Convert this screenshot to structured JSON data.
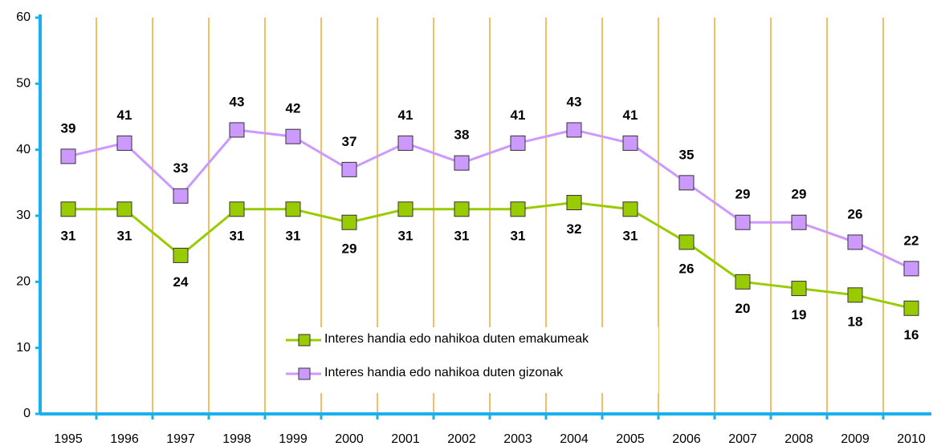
{
  "chart_data": {
    "type": "line",
    "categories": [
      "1995",
      "1996",
      "1997",
      "1998",
      "1999",
      "2000",
      "2001",
      "2002",
      "2003",
      "2004",
      "2005",
      "2006",
      "2007",
      "2008",
      "2009",
      "2010"
    ],
    "series": [
      {
        "name": "Interes handia edo nahikoa duten emakumeak",
        "color": "#99cc00",
        "values": [
          31,
          31,
          24,
          31,
          31,
          29,
          31,
          31,
          31,
          32,
          31,
          26,
          20,
          19,
          18,
          16
        ]
      },
      {
        "name": "Interes handia edo nahikoa duten gizonak",
        "color": "#cc99ff",
        "values": [
          39,
          41,
          33,
          43,
          42,
          37,
          41,
          38,
          41,
          43,
          41,
          35,
          29,
          29,
          26,
          22
        ]
      }
    ],
    "ylim": [
      0,
      60
    ],
    "yticks": [
      0,
      10,
      20,
      30,
      40,
      50,
      60
    ],
    "axis_color": "#1ab0ee",
    "separator_color": "#f0a830"
  }
}
